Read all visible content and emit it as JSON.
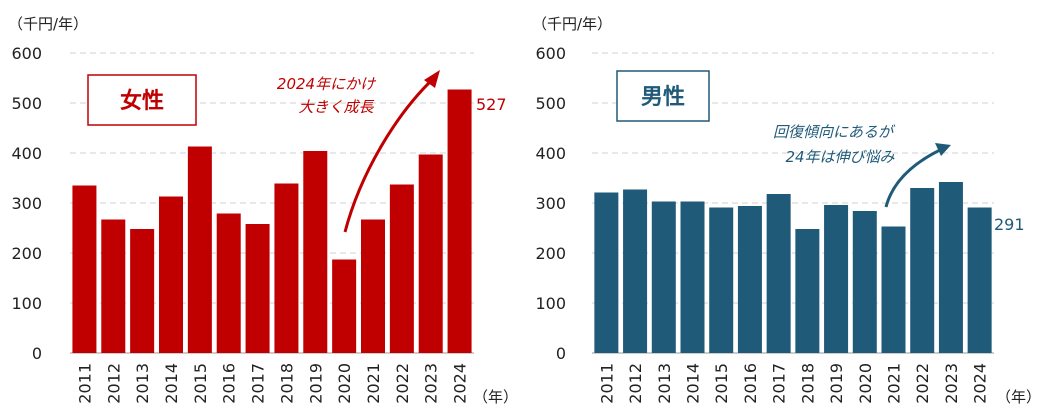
{
  "chart_data": [
    {
      "type": "bar",
      "title": "女性",
      "ylabel": "（千円/年）",
      "xlabel": "（年）",
      "ylim": [
        0,
        600
      ],
      "yticks": [
        0,
        100,
        200,
        300,
        400,
        500,
        600
      ],
      "grid": true,
      "color": "#c00000",
      "categories": [
        "2011",
        "2012",
        "2013",
        "2014",
        "2015",
        "2016",
        "2017",
        "2018",
        "2019",
        "2020",
        "2021",
        "2022",
        "2023",
        "2024"
      ],
      "values": [
        335,
        267,
        248,
        313,
        413,
        279,
        258,
        339,
        404,
        187,
        267,
        337,
        397,
        527
      ],
      "data_label": "527",
      "annotation": [
        "2024年にかけ",
        "大きく成長"
      ]
    },
    {
      "type": "bar",
      "title": "男性",
      "ylabel": "（千円/年）",
      "xlabel": "（年）",
      "ylim": [
        0,
        600
      ],
      "yticks": [
        0,
        100,
        200,
        300,
        400,
        500,
        600
      ],
      "grid": true,
      "color": "#1f5a78",
      "categories": [
        "2011",
        "2012",
        "2013",
        "2014",
        "2015",
        "2016",
        "2017",
        "2018",
        "2019",
        "2020",
        "2021",
        "2022",
        "2023",
        "2024"
      ],
      "values": [
        321,
        327,
        303,
        303,
        291,
        294,
        318,
        248,
        296,
        284,
        253,
        330,
        342,
        291
      ],
      "data_label": "291",
      "annotation": [
        "回復傾向にあるが",
        "24年は伸び悩み"
      ]
    }
  ]
}
